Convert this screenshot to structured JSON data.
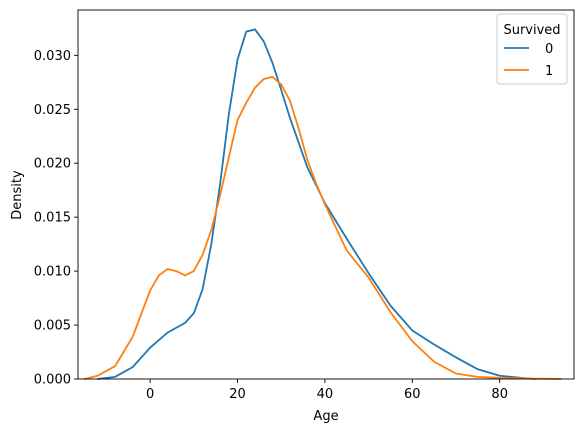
{
  "chart_data": {
    "type": "line",
    "title": "",
    "xlabel": "Age",
    "ylabel": "Density",
    "xlim": [
      -16.5,
      97
    ],
    "ylim": [
      0,
      0.0342
    ],
    "xticks": [
      0,
      20,
      40,
      60,
      80
    ],
    "yticks": [
      0.0,
      0.005,
      0.01,
      0.015,
      0.02,
      0.025,
      0.03
    ],
    "ytick_labels": [
      "0.000",
      "0.005",
      "0.010",
      "0.015",
      "0.020",
      "0.025",
      "0.030"
    ],
    "grid": false,
    "legend": {
      "title": "Survived",
      "position": "top-right"
    },
    "series": [
      {
        "name": "0",
        "color": "#1f77b4",
        "x": [
          -12,
          -8,
          -4,
          0,
          4,
          8,
          10,
          12,
          14,
          16,
          18,
          20,
          22,
          24,
          26,
          28,
          30,
          32,
          36,
          40,
          45,
          50,
          55,
          60,
          65,
          70,
          75,
          80,
          85,
          88
        ],
        "y": [
          0,
          0.0002,
          0.0011,
          0.0029,
          0.0043,
          0.0052,
          0.0061,
          0.0083,
          0.0125,
          0.018,
          0.0245,
          0.0296,
          0.0322,
          0.0324,
          0.0313,
          0.0293,
          0.0268,
          0.0242,
          0.0196,
          0.0163,
          0.013,
          0.0098,
          0.0068,
          0.0045,
          0.0032,
          0.002,
          0.0009,
          0.0003,
          0.0001,
          0
        ]
      },
      {
        "name": "1",
        "color": "#ff7f0e",
        "x": [
          -15,
          -12,
          -8,
          -4,
          0,
          2,
          4,
          6,
          8,
          10,
          12,
          14,
          16,
          18,
          20,
          22,
          24,
          26,
          28,
          30,
          32,
          34,
          36,
          38,
          40,
          45,
          50,
          55,
          60,
          65,
          70,
          75,
          80,
          85,
          90,
          94
        ],
        "y": [
          0,
          0.0003,
          0.0012,
          0.0039,
          0.0082,
          0.0096,
          0.0102,
          0.01,
          0.0096,
          0.01,
          0.0115,
          0.0138,
          0.017,
          0.0205,
          0.024,
          0.0256,
          0.027,
          0.0278,
          0.028,
          0.0273,
          0.0258,
          0.0232,
          0.0203,
          0.0181,
          0.0162,
          0.0119,
          0.0094,
          0.0062,
          0.0035,
          0.0016,
          0.0005,
          0.0002,
          0.0001,
          5e-05,
          2e-05,
          0
        ]
      }
    ]
  }
}
